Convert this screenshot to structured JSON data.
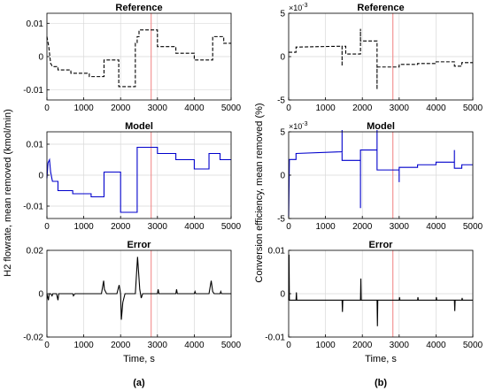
{
  "colors": {
    "reference": "#000000",
    "model": "#0000cc",
    "error": "#000000",
    "marker": "#f08080",
    "grid": "#d9d9d9"
  },
  "columns": [
    {
      "ylabel": "H2 flowrate, mean removed (kmol/min)",
      "xlabel": "Time, s",
      "caption": "(a)"
    },
    {
      "ylabel": "Conversion efficiency, mean removed (%)",
      "xlabel": "Time, s",
      "caption": "(b)"
    }
  ],
  "marker": {
    "x": 2830
  },
  "chart_data": [
    {
      "type": "line",
      "title": "Reference",
      "style": "dashed",
      "grid": true,
      "xlim": [
        0,
        5000
      ],
      "ylim": [
        -0.013,
        0.013
      ],
      "yticks": [
        -0.01,
        0,
        0.01
      ],
      "yticklabels": [
        "-0.01",
        "0",
        "0.01"
      ],
      "xticks": [
        0,
        1000,
        2000,
        3000,
        4000,
        5000
      ],
      "xticklabels": [
        "0",
        "1000",
        "2000",
        "3000",
        "4000",
        "5000"
      ],
      "x": [
        0,
        50,
        100,
        150,
        150,
        300,
        300,
        650,
        650,
        1150,
        1150,
        1550,
        1550,
        1950,
        1950,
        2400,
        2400,
        2450,
        2450,
        2500,
        2500,
        3000,
        3000,
        3500,
        3500,
        4000,
        4000,
        4500,
        4500,
        4600,
        4600,
        4800,
        4800,
        5000
      ],
      "y": [
        0.006,
        0.003,
        -0.002,
        -0.003,
        -0.003,
        -0.003,
        -0.004,
        -0.004,
        -0.005,
        -0.005,
        -0.006,
        -0.006,
        -0.001,
        -0.001,
        -0.009,
        -0.009,
        0.004,
        0.004,
        0.006,
        0.006,
        0.008,
        0.008,
        0.003,
        0.003,
        0.001,
        0.001,
        -0.001,
        -0.001,
        0.006,
        0.006,
        0.006,
        0.006,
        0.004,
        0.004
      ]
    },
    {
      "type": "line",
      "title": "Model",
      "style": "solid",
      "grid": true,
      "xlim": [
        0,
        5000
      ],
      "ylim": [
        -0.014,
        0.014
      ],
      "yticks": [
        -0.01,
        0,
        0.01
      ],
      "yticklabels": [
        "-0.01",
        "0",
        "0.01"
      ],
      "xticks": [
        0,
        1000,
        2000,
        3000,
        4000,
        5000
      ],
      "xticklabels": [
        "0",
        "1000",
        "2000",
        "3000",
        "4000",
        "5000"
      ],
      "x": [
        0,
        30,
        70,
        100,
        150,
        150,
        300,
        300,
        700,
        700,
        1200,
        1200,
        1550,
        1550,
        2000,
        2000,
        2450,
        2450,
        3000,
        3000,
        3500,
        3500,
        4000,
        4000,
        4400,
        4400,
        4700,
        4700,
        5000
      ],
      "y": [
        -0.001,
        0.004,
        0.005,
        0.001,
        -0.002,
        -0.002,
        -0.002,
        -0.005,
        -0.005,
        -0.006,
        -0.006,
        -0.007,
        -0.007,
        0.001,
        0.001,
        -0.012,
        -0.012,
        0.009,
        0.009,
        0.007,
        0.007,
        0.005,
        0.005,
        0.002,
        0.002,
        0.007,
        0.007,
        0.005,
        0.005
      ]
    },
    {
      "type": "line",
      "title": "Error",
      "style": "solid",
      "grid": true,
      "xlim": [
        0,
        5000
      ],
      "ylim": [
        -0.02,
        0.02
      ],
      "yticks": [
        -0.02,
        0,
        0.02
      ],
      "yticklabels": [
        "-0.02",
        "0",
        "0.02"
      ],
      "xticks": [
        0,
        1000,
        2000,
        3000,
        4000,
        5000
      ],
      "xticklabels": [
        "0",
        "1000",
        "2000",
        "3000",
        "4000",
        "5000"
      ],
      "xlabel": "Time, s",
      "x": [
        0,
        40,
        60,
        100,
        140,
        160,
        200,
        260,
        300,
        320,
        700,
        720,
        760,
        1200,
        1480,
        1540,
        1560,
        1620,
        1900,
        1960,
        2000,
        2020,
        2060,
        2120,
        2400,
        2460,
        2520,
        2560,
        2600,
        2700,
        3000,
        3020,
        3040,
        3500,
        3520,
        3540,
        4000,
        4020,
        4040,
        4400,
        4460,
        4500,
        4540,
        4600,
        4700,
        4720,
        4740,
        5000
      ],
      "y": [
        0,
        -0.003,
        0,
        0,
        -0.001,
        0,
        0,
        0,
        -0.003,
        0,
        0,
        -0.001,
        0,
        0,
        0,
        0.006,
        0.002,
        0,
        0,
        0.004,
        0,
        -0.012,
        -0.004,
        0,
        0,
        0.017,
        0.002,
        -0.002,
        0,
        0,
        0,
        0.002,
        0,
        0,
        0.002,
        0,
        0,
        0.001,
        0,
        0,
        0.006,
        0.001,
        0,
        0,
        0,
        0.001,
        0,
        0
      ]
    },
    {
      "type": "line",
      "title": "Reference",
      "style": "dashed",
      "grid": true,
      "xlim": [
        0,
        5000
      ],
      "ylim": [
        -0.005,
        0.005
      ],
      "yticks": [
        -0.005,
        0,
        0.005
      ],
      "yticklabels": [
        "-5",
        "0",
        "5"
      ],
      "exponent": "×10^-3",
      "xticks": [
        0,
        1000,
        2000,
        3000,
        4000,
        5000
      ],
      "xticklabels": [
        "0",
        "1000",
        "2000",
        "3000",
        "4000",
        "5000"
      ],
      "x": [
        0,
        200,
        200,
        1450,
        1450,
        1450,
        1550,
        1550,
        1950,
        1950,
        1950,
        2400,
        2400,
        2400,
        3000,
        3000,
        3500,
        3500,
        4000,
        4000,
        4500,
        4500,
        4700,
        4700,
        5000
      ],
      "y": [
        0.0005,
        0.0005,
        0.0011,
        0.0012,
        -0.0011,
        0.0012,
        0.0012,
        0.0003,
        0.0003,
        0.0032,
        0.0018,
        0.0018,
        -0.0038,
        -0.0012,
        -0.0012,
        -0.0009,
        -0.0009,
        -0.0008,
        -0.0008,
        -0.0006,
        -0.0006,
        -0.0011,
        -0.0011,
        -0.0007,
        -0.0007
      ]
    },
    {
      "type": "line",
      "title": "Model",
      "style": "solid",
      "grid": true,
      "xlim": [
        0,
        5000
      ],
      "ylim": [
        -0.005,
        0.005
      ],
      "yticks": [
        -0.005,
        0,
        0.005
      ],
      "yticklabels": [
        "-5",
        "0",
        "5"
      ],
      "exponent": "×10^-3",
      "xticks": [
        0,
        1000,
        2000,
        3000,
        4000,
        5000
      ],
      "xticklabels": [
        "0",
        "1000",
        "2000",
        "3000",
        "4000",
        "5000"
      ],
      "x": [
        0,
        20,
        20,
        200,
        200,
        1450,
        1450,
        1450,
        1550,
        1550,
        1950,
        1950,
        1950,
        2400,
        2400,
        2400,
        3000,
        3000,
        3000,
        3500,
        3500,
        4000,
        4000,
        4500,
        4500,
        4500,
        4700,
        4700,
        5000
      ],
      "y": [
        -0.0048,
        0.0018,
        0.0018,
        0.0018,
        0.0025,
        0.0027,
        0.0052,
        0.0017,
        0.0017,
        0.0017,
        0.0017,
        -0.0038,
        0.0029,
        0.0029,
        0.0052,
        0.0006,
        0.0006,
        -0.0008,
        0.0009,
        0.0009,
        0.0012,
        0.0012,
        0.0015,
        0.0015,
        0.0029,
        0.0008,
        0.0008,
        0.0012,
        0.0012
      ]
    },
    {
      "type": "line",
      "title": "Error",
      "style": "solid",
      "grid": true,
      "xlim": [
        0,
        5000
      ],
      "ylim": [
        -0.01,
        0.01
      ],
      "yticks": [
        -0.01,
        0,
        0.01
      ],
      "yticklabels": [
        "-0.01",
        "0",
        "0.01"
      ],
      "xticks": [
        0,
        1000,
        2000,
        3000,
        4000,
        5000
      ],
      "xticklabels": [
        "0",
        "1000",
        "2000",
        "3000",
        "4000",
        "5000"
      ],
      "xlabel": "Time, s",
      "x": [
        0,
        10,
        20,
        30,
        200,
        210,
        220,
        1450,
        1460,
        1470,
        1950,
        1960,
        1970,
        2400,
        2410,
        2420,
        3000,
        3010,
        3020,
        3500,
        3510,
        3520,
        4000,
        4010,
        4020,
        4500,
        4510,
        4520,
        4700,
        4710,
        4720,
        5000
      ],
      "y": [
        -0.0015,
        0.009,
        -0.0015,
        -0.0015,
        -0.0015,
        0.0003,
        -0.0015,
        -0.0015,
        -0.0042,
        -0.0015,
        -0.0015,
        0.0035,
        -0.0015,
        -0.0015,
        -0.0075,
        -0.0015,
        -0.0015,
        -0.0008,
        -0.0015,
        -0.0015,
        -0.0008,
        -0.0015,
        -0.0015,
        -0.0008,
        -0.0015,
        -0.0015,
        -0.004,
        -0.0015,
        -0.0015,
        -0.001,
        -0.0015,
        -0.0015
      ]
    }
  ]
}
